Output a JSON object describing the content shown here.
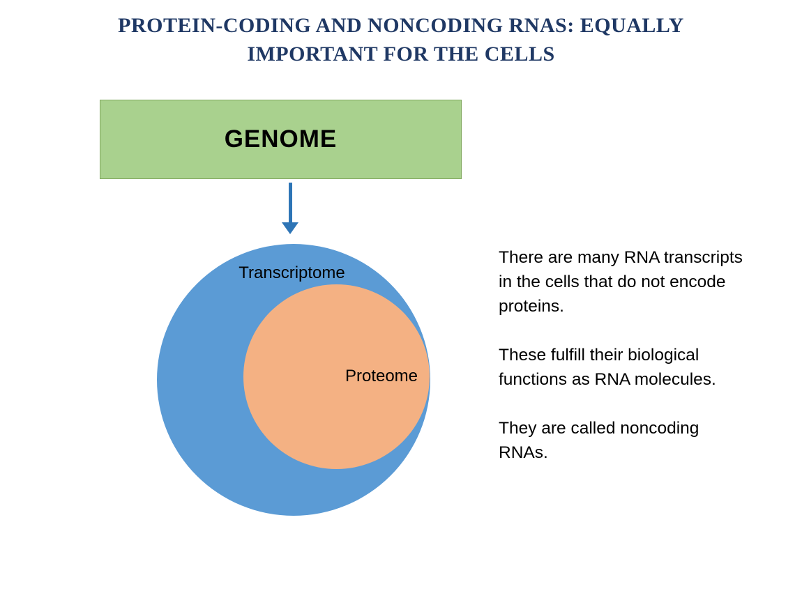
{
  "page": {
    "title_line1": "PROTEIN-CODING AND NONCODING RNAS: EQUALLY",
    "title_line2": "IMPORTANT FOR THE CELLS"
  },
  "diagram": {
    "genome_label": "GENOME",
    "venn": {
      "outer_label": "Transcriptome",
      "inner_label": "Proteome"
    }
  },
  "notes": {
    "paragraphs": [
      "There are many RNA transcripts in the cells that do not encode proteins.",
      "These fulfill their biological functions as RNA molecules.",
      "They are called noncoding RNAs."
    ]
  },
  "colors": {
    "title_text": "#1F3864",
    "genome_fill": "#A9D18E",
    "genome_border": "#7FA65C",
    "arrow": "#2E75B6",
    "transcriptome_fill": "#5B9BD5",
    "proteome_fill": "#F4B183",
    "body_text": "#000000"
  }
}
